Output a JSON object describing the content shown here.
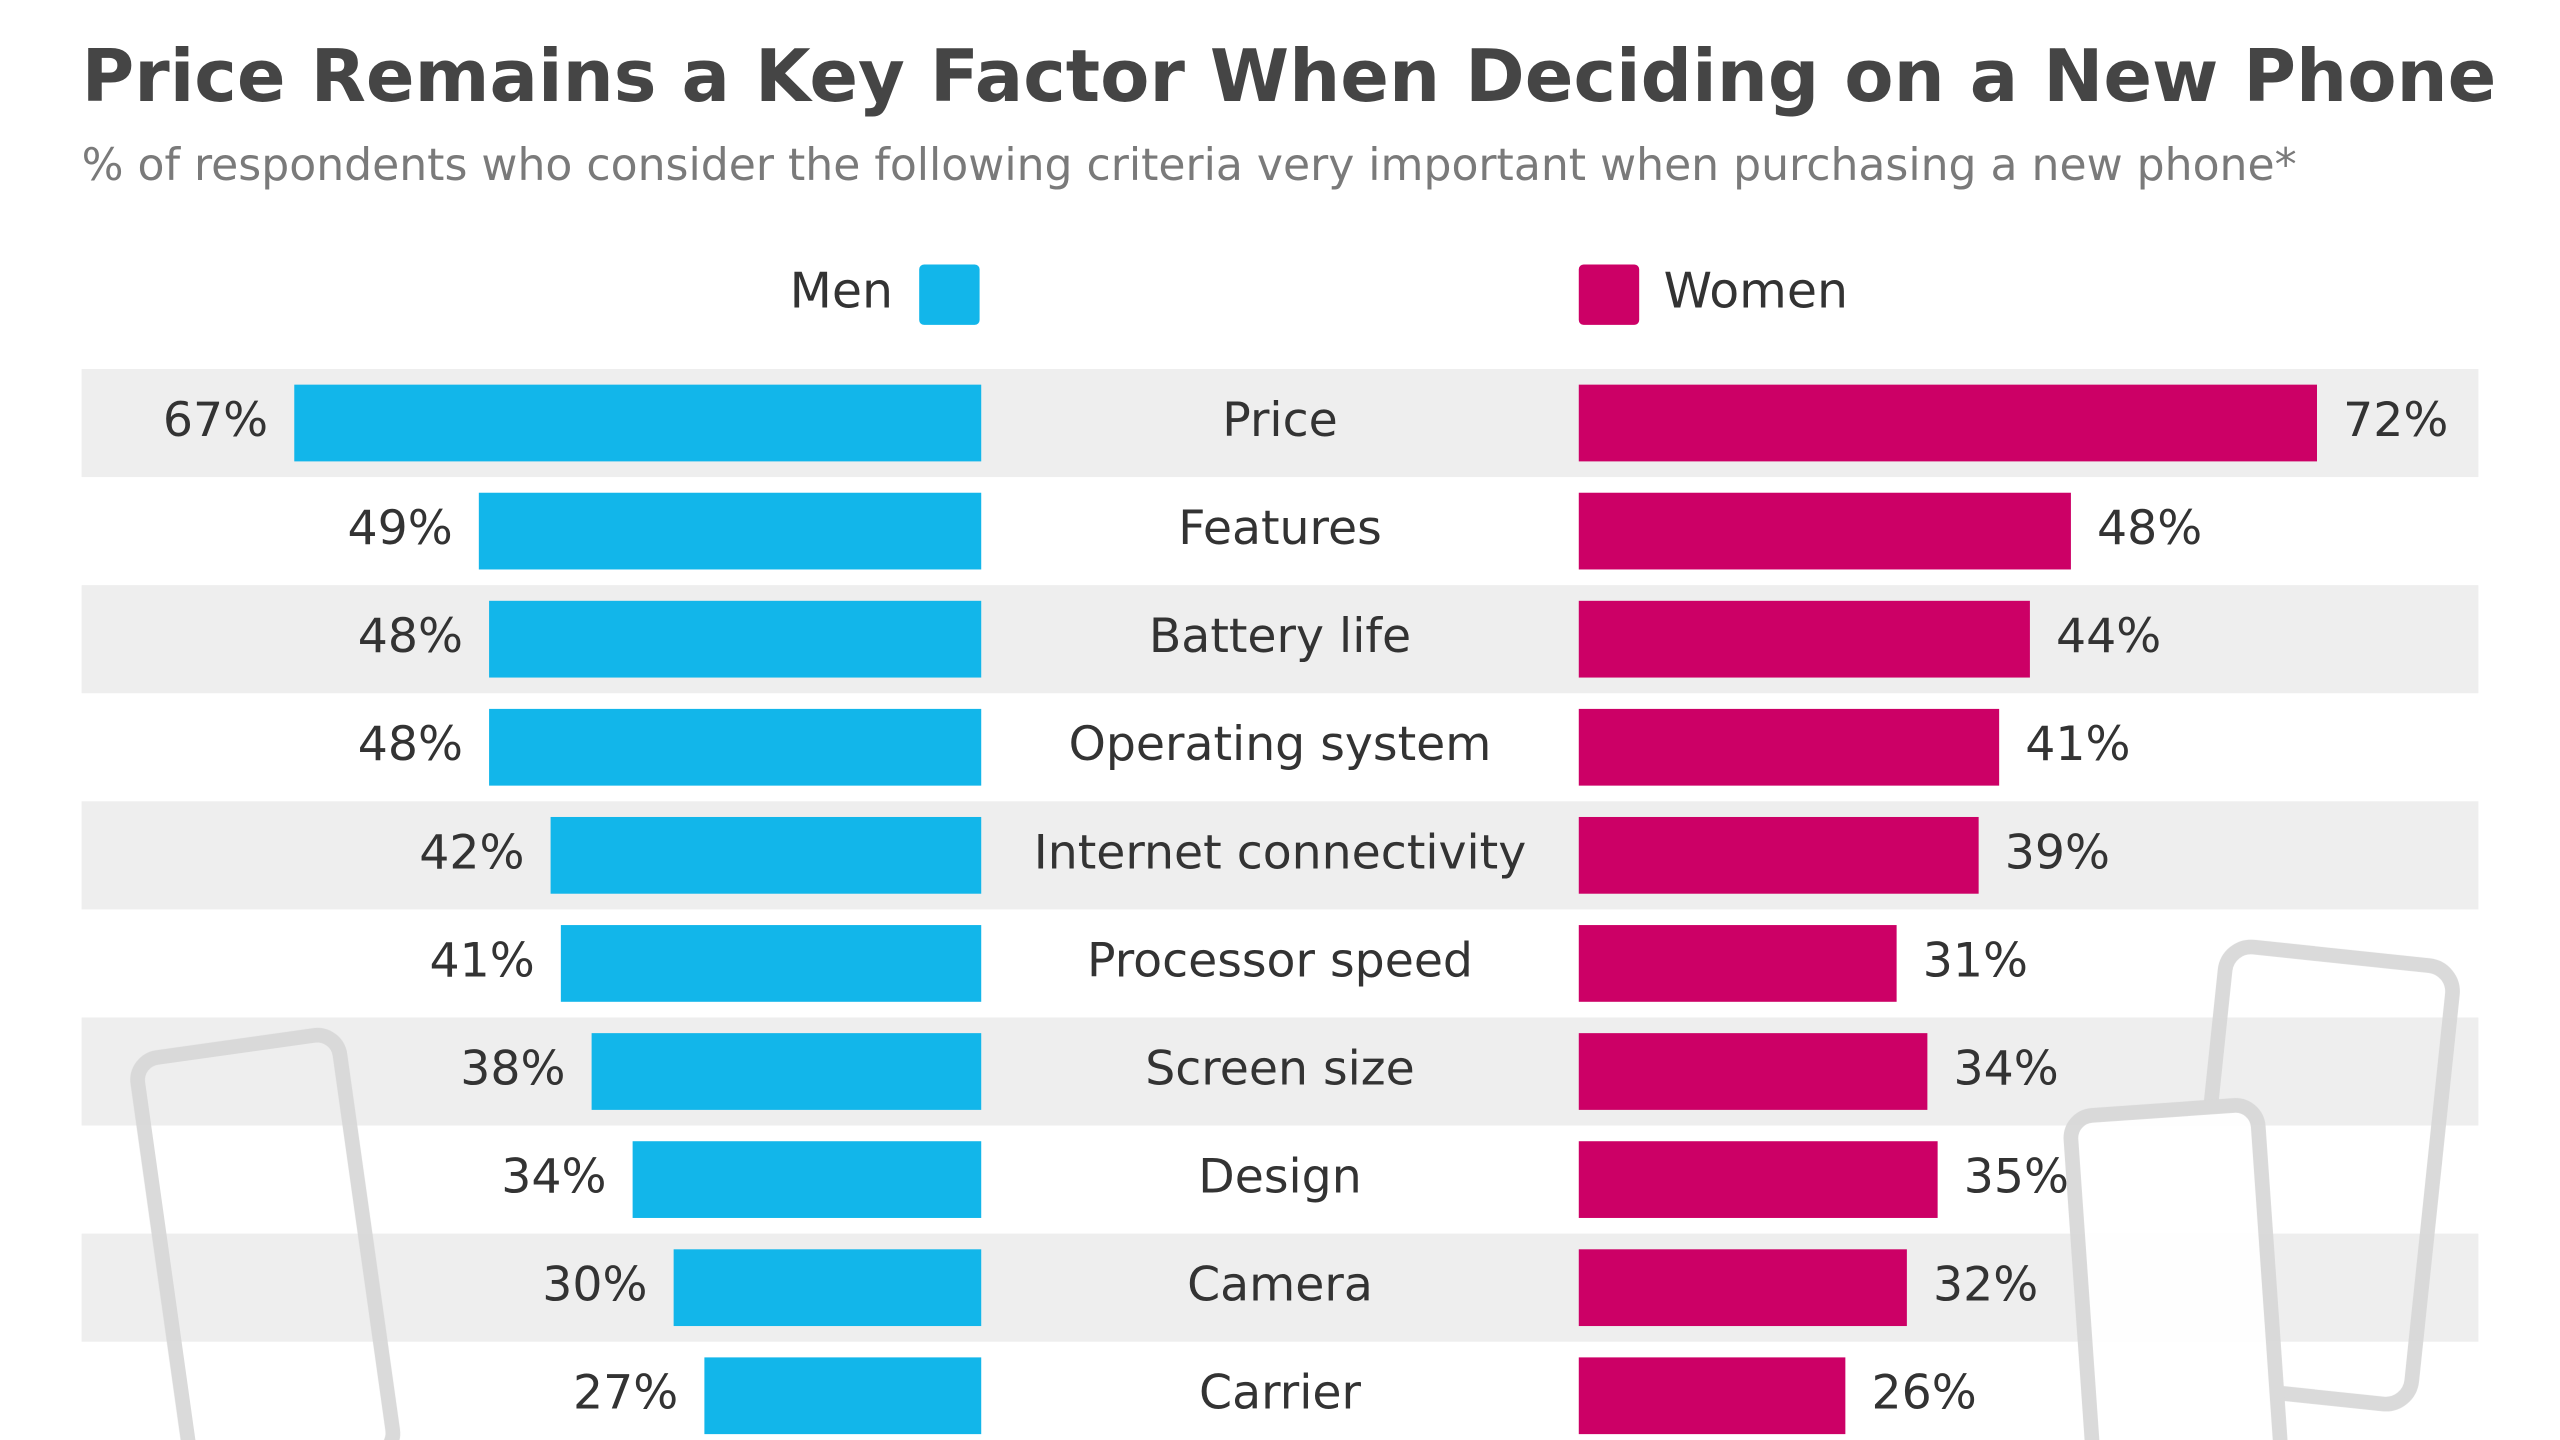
{
  "chart_data": {
    "type": "bar",
    "title": "Price Remains a Key Factor When Deciding on a New Phone",
    "subtitle": "% of respondents who consider the following criteria very important when purchasing a new phone*",
    "categories": [
      "Price",
      "Features",
      "Battery life",
      "Operating system",
      "Internet connectivity",
      "Processor speed",
      "Screen size",
      "Design",
      "Camera",
      "Carrier"
    ],
    "series": [
      {
        "name": "Men",
        "color": "#12b6ea",
        "values": [
          67,
          49,
          48,
          48,
          42,
          41,
          38,
          34,
          30,
          27
        ],
        "value_labels": [
          "67%",
          "49%",
          "48%",
          "48%",
          "42%",
          "41%",
          "38%",
          "34%",
          "30%",
          "27%"
        ]
      },
      {
        "name": "Women",
        "color": "#cc0066",
        "values": [
          72,
          48,
          44,
          41,
          39,
          31,
          34,
          35,
          32,
          26
        ],
        "value_labels": [
          "72%",
          "48%",
          "44%",
          "41%",
          "39%",
          "31%",
          "34%",
          "35%",
          "32%",
          "26%"
        ]
      }
    ]
  }
}
